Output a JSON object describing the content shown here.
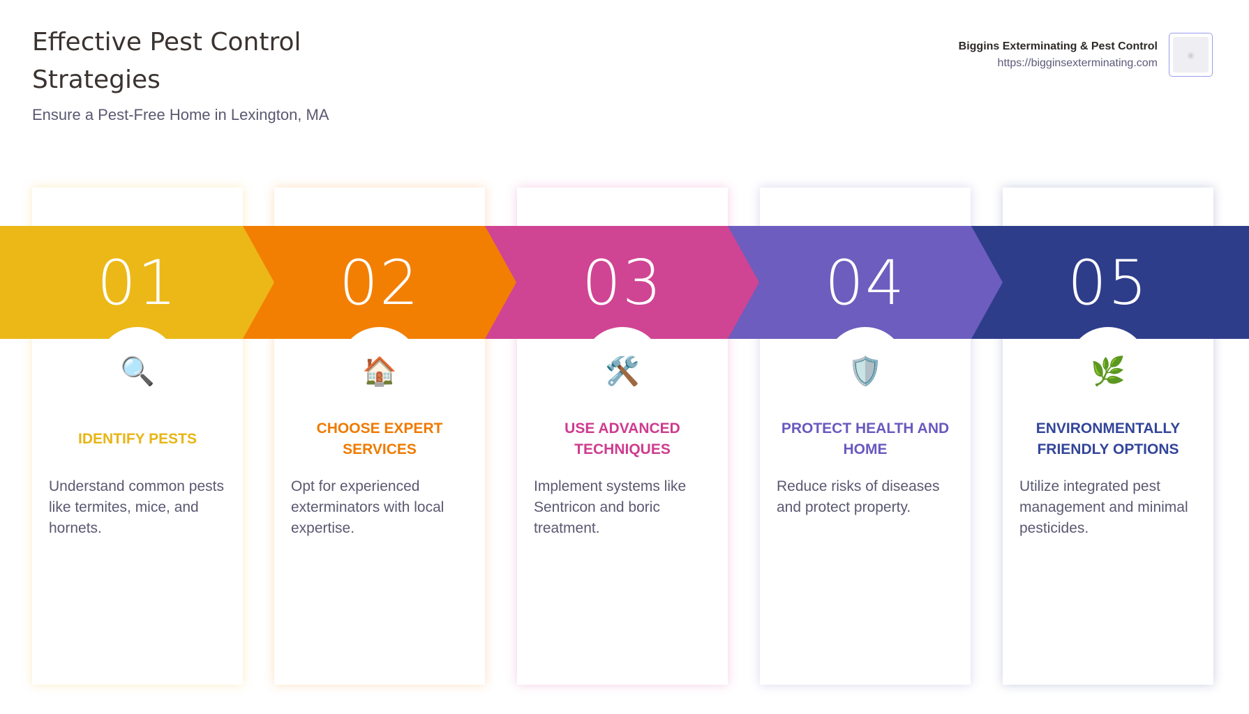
{
  "header": {
    "title": "Effective Pest Control Strategies",
    "subtitle": "Ensure a Pest-Free Home in Lexington, MA"
  },
  "brand": {
    "name": "Biggins Exterminating & Pest Control",
    "url": "https://bigginsexterminating.com"
  },
  "steps": [
    {
      "number": "01",
      "icon": "magnifying-glass",
      "emoji": "🔍",
      "heading": "IDENTIFY PESTS",
      "description": "Understand common pests like termites, mice, and hornets.",
      "color": "#EBB817",
      "heading_color": "#E8B514"
    },
    {
      "number": "02",
      "icon": "house",
      "emoji": "🏠",
      "heading": "CHOOSE EXPERT SERVICES",
      "description": "Opt for experienced exterminators with local expertise.",
      "color": "#F27F02",
      "heading_color": "#EF7A00"
    },
    {
      "number": "03",
      "icon": "hammer-and-wrench",
      "emoji": "🛠️",
      "heading": "USE ADVANCED TECHNIQUES",
      "description": "Implement systems like Sentricon and boric treatment.",
      "color": "#D04494",
      "heading_color": "#CE3B8E"
    },
    {
      "number": "04",
      "icon": "shield",
      "emoji": "🛡️",
      "heading": "PROTECT HEALTH AND HOME",
      "description": "Reduce risks of diseases and protect property.",
      "color": "#6C5DBE",
      "heading_color": "#6A58BF"
    },
    {
      "number": "05",
      "icon": "herb",
      "emoji": "🌿",
      "heading": "ENVIRONMENTALLY FRIENDLY OPTIONS",
      "description": "Utilize integrated pest management and minimal pesticides.",
      "color": "#2E3D8A",
      "heading_color": "#33459A"
    }
  ]
}
